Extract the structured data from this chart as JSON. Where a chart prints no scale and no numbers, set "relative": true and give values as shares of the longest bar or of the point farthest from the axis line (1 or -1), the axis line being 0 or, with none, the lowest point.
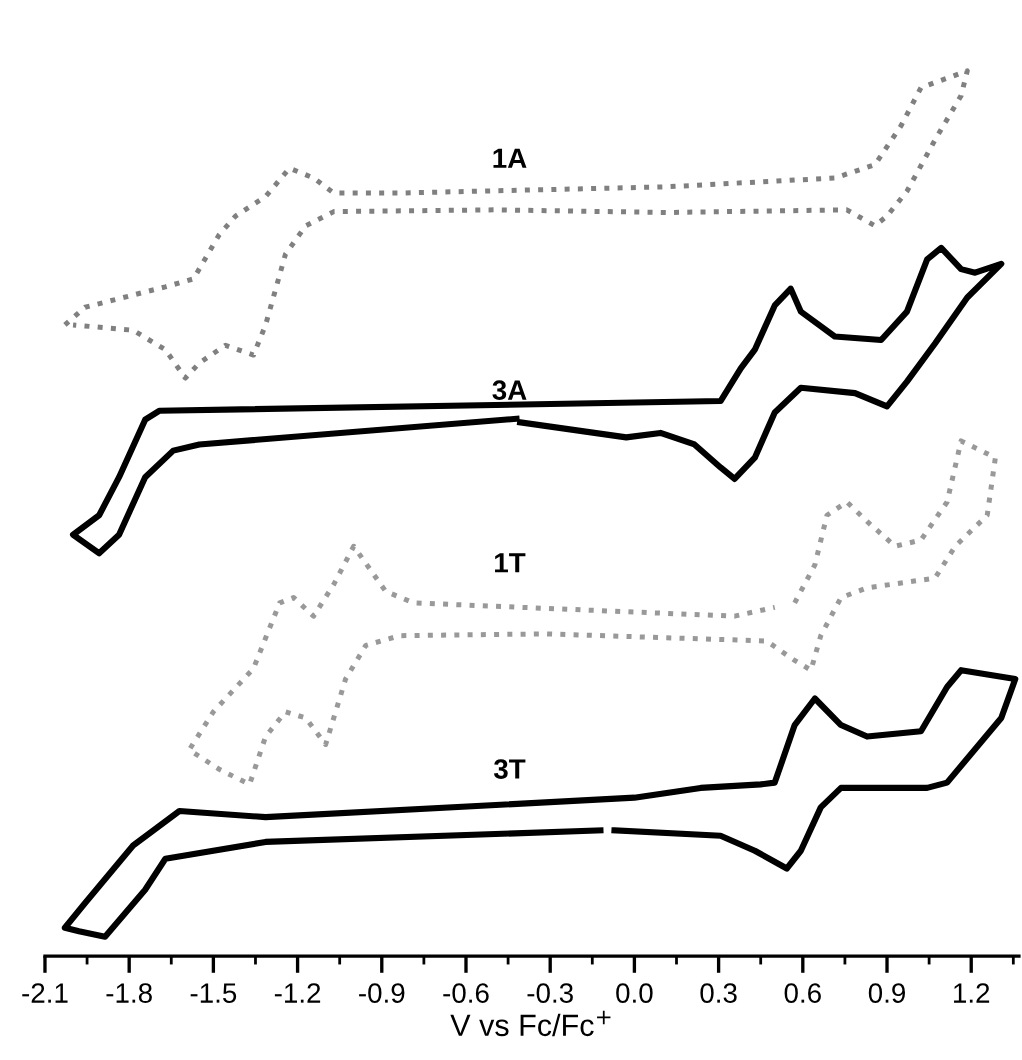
{
  "chart_data": {
    "type": "line",
    "relative": true,
    "xlabel": "V vs Fc/Fc$^{+}$",
    "xlim": [
      -2.1,
      1.37
    ],
    "xticks": [
      -2.1,
      -1.8,
      -1.5,
      -1.2,
      -0.9,
      -0.6,
      -0.3,
      {
        "value": 0,
        "label": "0.0"
      },
      0.3,
      0.6,
      0.9,
      1.2
    ],
    "grid": false,
    "legend": false,
    "tick_labels": "x",
    "marker": "none",
    "series": [
      {
        "name": "1A",
        "color": "#808080",
        "line_style": "dotted",
        "x": [
          -2.029,
          -1.957,
          -1.671,
          -1.571,
          -1.479,
          -1.421,
          -1.314,
          -1.229,
          -1.143,
          -1.071,
          -0.836,
          0.114,
          0.714,
          0.857,
          0.95,
          1.021,
          1.186,
          1.164,
          1.071,
          0.971,
          0.9,
          0.857,
          0.757,
          0.114,
          -0.5,
          -1.071,
          -1.171,
          -1.243,
          -1.314,
          -1.357,
          -1.457,
          -1.55,
          -1.6,
          -1.671,
          -1.786,
          -2.0
        ],
        "values": [
          0.713,
          0.733,
          0.756,
          0.765,
          0.815,
          0.836,
          0.858,
          0.89,
          0.879,
          0.862,
          0.862,
          0.869,
          0.879,
          0.894,
          0.938,
          0.981,
          1.0,
          0.972,
          0.922,
          0.864,
          0.836,
          0.825,
          0.843,
          0.84,
          0.843,
          0.841,
          0.825,
          0.793,
          0.713,
          0.679,
          0.69,
          0.67,
          0.653,
          0.685,
          0.707,
          0.713
        ]
      },
      {
        "name": "3A",
        "color": "#000000",
        "line_style": "solid",
        "x": [
          -0.407,
          -0.029,
          0.093,
          0.214,
          0.307,
          0.357,
          0.429,
          0.5,
          0.593,
          0.786,
          0.9,
          0.971,
          1.071,
          1.186,
          1.307,
          1.214,
          1.164,
          1.093,
          1.043,
          0.971,
          0.879,
          0.714,
          0.593,
          0.557,
          0.5,
          0.429,
          0.379,
          0.307,
          -1.693,
          -1.743,
          -1.836,
          -1.907,
          -2.0,
          -1.907,
          -1.836,
          -1.743,
          -1.643,
          -1.55,
          -0.42
        ],
        "values": [
          0.603,
          0.586,
          0.591,
          0.578,
          0.552,
          0.539,
          0.563,
          0.614,
          0.642,
          0.636,
          0.621,
          0.649,
          0.692,
          0.744,
          0.782,
          0.772,
          0.776,
          0.8,
          0.787,
          0.728,
          0.696,
          0.7,
          0.728,
          0.754,
          0.735,
          0.685,
          0.664,
          0.627,
          0.616,
          0.606,
          0.541,
          0.498,
          0.476,
          0.455,
          0.476,
          0.541,
          0.571,
          0.578,
          0.607
        ]
      },
      {
        "name": "1T",
        "color": "#999999",
        "line_style": "dotted",
        "x": [
          0.571,
          0.643,
          0.686,
          0.757,
          0.829,
          0.929,
          1.021,
          1.114,
          1.164,
          1.286,
          1.257,
          1.143,
          1.071,
          0.829,
          0.736,
          0.664,
          0.629,
          0.571,
          0.471,
          -0.314,
          -0.836,
          -0.957,
          -1.029,
          -1.1,
          -1.171,
          -1.243,
          -1.314,
          -1.371,
          -1.479,
          -1.586,
          -1.5,
          -1.357,
          -1.264,
          -1.214,
          -1.143,
          -1.071,
          -1.0,
          -0.886,
          -0.786,
          0.357,
          0.5
        ],
        "values": [
          0.399,
          0.442,
          0.498,
          0.513,
          0.491,
          0.463,
          0.47,
          0.513,
          0.582,
          0.563,
          0.498,
          0.463,
          0.427,
          0.416,
          0.405,
          0.362,
          0.323,
          0.334,
          0.356,
          0.364,
          0.362,
          0.351,
          0.313,
          0.239,
          0.269,
          0.276,
          0.248,
          0.194,
          0.211,
          0.233,
          0.276,
          0.325,
          0.399,
          0.405,
          0.384,
          0.42,
          0.463,
          0.412,
          0.399,
          0.384,
          0.394
        ]
      },
      {
        "name": "3T",
        "color": "#000000",
        "line_style": "solid",
        "x": [
          -0.071,
          0.307,
          0.429,
          0.543,
          0.593,
          0.664,
          0.736,
          1.0,
          1.043,
          1.114,
          1.307,
          1.357,
          1.164,
          1.114,
          1.021,
          0.829,
          0.736,
          0.643,
          0.571,
          0.5,
          0.45,
          0.236,
          0.0,
          -1.314,
          -1.621,
          -1.786,
          -1.957,
          -2.029,
          -1.979,
          -1.886,
          -1.743,
          -1.671,
          -1.314,
          -0.121
        ],
        "values": [
          0.142,
          0.136,
          0.119,
          0.099,
          0.119,
          0.168,
          0.19,
          0.19,
          0.19,
          0.196,
          0.269,
          0.313,
          0.323,
          0.304,
          0.254,
          0.248,
          0.261,
          0.291,
          0.261,
          0.196,
          0.194,
          0.19,
          0.179,
          0.157,
          0.164,
          0.125,
          0.06,
          0.032,
          0.028,
          0.022,
          0.075,
          0.11,
          0.129,
          0.142
        ]
      }
    ]
  }
}
